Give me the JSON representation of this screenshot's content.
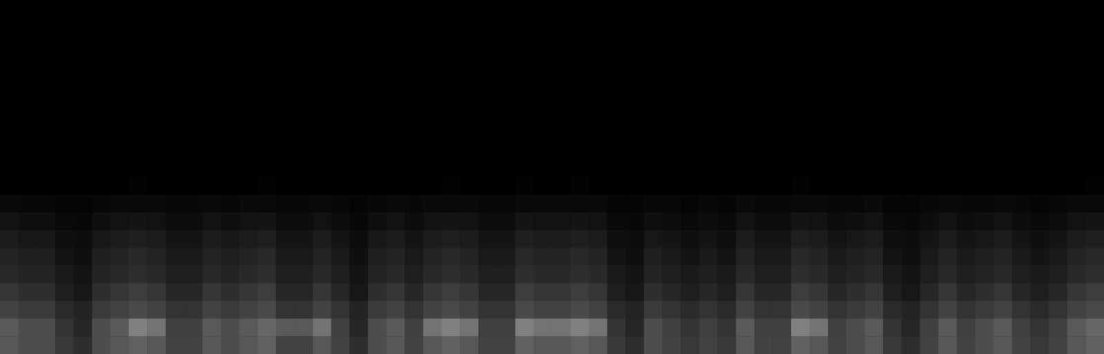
{
  "chart_data": {
    "type": "heatmap",
    "tick_labels": false,
    "zlim": [
      0,
      100
    ],
    "cells": [
      [
        0,
        0,
        0,
        0,
        0,
        0,
        0,
        0,
        0,
        0,
        0,
        0,
        0,
        0,
        0,
        0,
        0,
        0,
        0,
        0,
        0,
        0,
        0,
        0,
        0,
        0,
        0,
        0,
        0,
        0,
        0,
        0,
        0,
        0,
        0,
        0,
        0,
        0,
        0,
        0,
        0,
        0,
        0,
        0,
        0,
        0,
        0,
        0,
        0,
        0,
        0,
        0,
        0,
        0,
        0,
        0,
        0,
        0,
        0,
        0
      ],
      [
        0,
        0,
        0,
        0,
        0,
        0,
        0,
        0,
        0,
        0,
        0,
        0,
        0,
        0,
        0,
        0,
        0,
        0,
        0,
        0,
        0,
        0,
        0,
        0,
        0,
        0,
        0,
        0,
        0,
        0,
        0,
        0,
        0,
        0,
        0,
        0,
        0,
        0,
        0,
        0,
        0,
        0,
        0,
        0,
        0,
        0,
        0,
        0,
        0,
        0,
        0,
        0,
        0,
        0,
        0,
        0,
        0,
        0,
        0,
        0
      ],
      [
        0,
        0,
        0,
        0,
        0,
        0,
        0,
        0,
        0,
        0,
        0,
        0,
        0,
        0,
        0,
        0,
        0,
        0,
        0,
        0,
        0,
        0,
        0,
        0,
        0,
        0,
        0,
        0,
        0,
        0,
        0,
        0,
        0,
        0,
        0,
        0,
        0,
        0,
        0,
        0,
        0,
        0,
        0,
        0,
        0,
        0,
        0,
        0,
        0,
        0,
        0,
        0,
        0,
        0,
        0,
        0,
        0,
        0,
        0,
        0
      ],
      [
        0,
        0,
        0,
        0,
        0,
        0,
        0,
        0,
        0,
        0,
        0,
        0,
        0,
        0,
        0,
        0,
        0,
        0,
        0,
        0,
        0,
        0,
        0,
        0,
        0,
        0,
        0,
        0,
        0,
        0,
        0,
        0,
        0,
        0,
        0,
        0,
        0,
        0,
        0,
        0,
        0,
        0,
        0,
        0,
        0,
        0,
        0,
        0,
        0,
        0,
        0,
        0,
        0,
        0,
        0,
        0,
        0,
        0,
        0,
        0
      ],
      [
        0,
        0,
        0,
        0,
        0,
        0,
        0,
        0,
        0,
        0,
        0,
        0,
        0,
        0,
        0,
        0,
        0,
        0,
        0,
        0,
        0,
        0,
        0,
        0,
        0,
        0,
        0,
        0,
        0,
        0,
        0,
        0,
        0,
        0,
        0,
        0,
        0,
        0,
        0,
        0,
        0,
        0,
        0,
        0,
        0,
        0,
        0,
        0,
        0,
        0,
        0,
        0,
        0,
        0,
        0,
        0,
        0,
        0,
        0,
        0
      ],
      [
        0,
        0,
        0,
        0,
        0,
        0,
        0,
        0,
        0,
        0,
        0,
        0,
        0,
        0,
        0,
        0,
        0,
        0,
        0,
        0,
        0,
        0,
        0,
        0,
        0,
        0,
        0,
        0,
        0,
        0,
        0,
        0,
        0,
        0,
        0,
        0,
        0,
        0,
        0,
        0,
        0,
        0,
        0,
        0,
        0,
        0,
        0,
        0,
        0,
        0,
        0,
        0,
        0,
        0,
        0,
        0,
        0,
        0,
        0,
        0
      ],
      [
        0,
        0,
        0,
        0,
        0,
        0,
        0,
        0,
        0,
        0,
        0,
        0,
        0,
        0,
        0,
        0,
        0,
        0,
        0,
        0,
        0,
        0,
        0,
        0,
        0,
        0,
        0,
        0,
        0,
        0,
        0,
        0,
        0,
        0,
        0,
        0,
        0,
        0,
        0,
        0,
        0,
        0,
        0,
        0,
        0,
        0,
        0,
        0,
        0,
        0,
        0,
        0,
        0,
        0,
        0,
        0,
        0,
        0,
        0,
        0
      ],
      [
        0,
        0,
        0,
        0,
        0,
        0,
        0,
        0,
        0,
        0,
        0,
        0,
        0,
        0,
        0,
        0,
        0,
        0,
        0,
        0,
        0,
        0,
        0,
        0,
        0,
        0,
        0,
        0,
        0,
        0,
        0,
        0,
        0,
        0,
        0,
        0,
        0,
        0,
        0,
        0,
        0,
        0,
        0,
        0,
        0,
        0,
        0,
        0,
        0,
        0,
        0,
        0,
        0,
        0,
        0,
        0,
        0,
        0,
        0,
        0
      ],
      [
        0,
        0,
        0,
        0,
        0,
        0,
        0,
        0,
        0,
        0,
        0,
        0,
        0,
        0,
        0,
        0,
        0,
        0,
        0,
        0,
        0,
        0,
        0,
        0,
        0,
        0,
        0,
        0,
        0,
        0,
        0,
        0,
        0,
        0,
        0,
        0,
        0,
        0,
        0,
        0,
        0,
        0,
        0,
        0,
        0,
        0,
        0,
        0,
        0,
        0,
        0,
        0,
        0,
        0,
        0,
        0,
        0,
        0,
        0,
        0
      ],
      [
        0,
        0,
        0,
        0,
        0,
        0,
        0,
        0,
        0,
        0,
        0,
        0,
        0,
        0,
        0,
        0,
        0,
        0,
        0,
        0,
        0,
        0,
        0,
        0,
        0,
        0,
        0,
        0,
        0,
        0,
        0,
        0,
        0,
        0,
        0,
        0,
        0,
        0,
        0,
        0,
        0,
        0,
        0,
        0,
        0,
        0,
        0,
        0,
        0,
        0,
        0,
        0,
        0,
        0,
        0,
        0,
        0,
        0,
        0,
        0
      ],
      [
        0,
        0,
        0,
        0,
        0,
        0,
        0,
        1,
        0,
        0,
        0,
        0,
        0,
        0,
        1,
        0,
        0,
        0,
        0,
        0,
        0,
        0,
        0,
        0,
        1,
        0,
        0,
        0,
        1,
        0,
        0,
        1,
        0,
        0,
        0,
        0,
        0,
        0,
        0,
        0,
        0,
        0,
        0,
        1,
        0,
        0,
        0,
        0,
        0,
        0,
        0,
        0,
        0,
        0,
        0,
        0,
        0,
        0,
        0,
        1
      ],
      [
        4,
        3,
        3,
        2,
        2,
        3,
        4,
        4,
        4,
        3,
        3,
        4,
        3,
        4,
        4,
        3,
        3,
        4,
        3,
        2,
        3,
        4,
        3,
        4,
        4,
        4,
        3,
        3,
        4,
        4,
        4,
        4,
        4,
        2,
        2,
        3,
        3,
        2,
        3,
        2,
        4,
        3,
        3,
        4,
        4,
        3,
        3,
        4,
        2,
        2,
        3,
        4,
        3,
        3,
        4,
        3,
        2,
        3,
        4,
        4
      ],
      [
        7,
        6,
        6,
        4,
        3,
        6,
        7,
        8,
        7,
        5,
        5,
        7,
        6,
        7,
        8,
        5,
        5,
        7,
        5,
        3,
        6,
        7,
        5,
        7,
        8,
        7,
        5,
        5,
        8,
        7,
        7,
        8,
        7,
        4,
        3,
        6,
        5,
        4,
        5,
        4,
        7,
        5,
        5,
        8,
        7,
        5,
        6,
        7,
        4,
        3,
        5,
        7,
        5,
        6,
        7,
        5,
        4,
        5,
        7,
        8
      ],
      [
        11,
        9,
        9,
        6,
        5,
        9,
        11,
        12,
        11,
        8,
        8,
        11,
        9,
        11,
        12,
        8,
        8,
        11,
        8,
        5,
        9,
        11,
        8,
        11,
        12,
        11,
        8,
        8,
        12,
        11,
        11,
        12,
        11,
        6,
        5,
        9,
        8,
        6,
        8,
        6,
        11,
        8,
        8,
        12,
        11,
        8,
        9,
        11,
        6,
        5,
        8,
        11,
        8,
        9,
        11,
        8,
        6,
        8,
        11,
        12
      ],
      [
        14,
        12,
        12,
        8,
        6,
        12,
        14,
        16,
        14,
        10,
        10,
        14,
        12,
        14,
        16,
        10,
        10,
        14,
        10,
        6,
        12,
        14,
        10,
        14,
        16,
        14,
        10,
        10,
        16,
        14,
        14,
        16,
        14,
        8,
        6,
        12,
        10,
        8,
        10,
        8,
        14,
        10,
        10,
        16,
        14,
        10,
        12,
        14,
        8,
        6,
        10,
        14,
        10,
        12,
        14,
        10,
        8,
        10,
        14,
        16
      ],
      [
        16,
        14,
        14,
        10,
        8,
        14,
        16,
        18,
        16,
        12,
        12,
        16,
        14,
        16,
        18,
        12,
        12,
        16,
        12,
        8,
        14,
        16,
        12,
        16,
        18,
        16,
        12,
        12,
        18,
        16,
        16,
        18,
        16,
        10,
        8,
        14,
        12,
        10,
        12,
        10,
        16,
        12,
        12,
        18,
        16,
        12,
        14,
        16,
        10,
        8,
        12,
        16,
        12,
        14,
        16,
        12,
        10,
        12,
        16,
        18
      ],
      [
        21,
        18,
        18,
        12,
        9,
        18,
        21,
        24,
        21,
        15,
        15,
        21,
        18,
        21,
        24,
        15,
        15,
        21,
        15,
        9,
        18,
        21,
        15,
        21,
        24,
        21,
        15,
        15,
        24,
        21,
        21,
        24,
        21,
        12,
        9,
        18,
        15,
        12,
        15,
        12,
        21,
        15,
        15,
        24,
        21,
        15,
        18,
        21,
        12,
        9,
        15,
        21,
        15,
        18,
        21,
        15,
        12,
        15,
        21,
        24
      ],
      [
        26,
        23,
        23,
        17,
        14,
        23,
        26,
        29,
        26,
        20,
        20,
        26,
        23,
        26,
        29,
        20,
        20,
        26,
        20,
        14,
        23,
        26,
        20,
        26,
        29,
        26,
        20,
        20,
        29,
        26,
        26,
        29,
        26,
        17,
        14,
        23,
        20,
        17,
        20,
        17,
        26,
        20,
        20,
        29,
        26,
        20,
        23,
        26,
        17,
        14,
        20,
        26,
        20,
        23,
        26,
        20,
        17,
        20,
        26,
        29
      ],
      [
        35,
        30,
        30,
        20,
        15,
        30,
        35,
        50,
        45,
        25,
        25,
        35,
        30,
        35,
        40,
        35,
        35,
        45,
        25,
        15,
        30,
        35,
        25,
        45,
        50,
        45,
        25,
        25,
        50,
        45,
        45,
        50,
        45,
        20,
        15,
        30,
        25,
        20,
        25,
        20,
        35,
        25,
        25,
        50,
        45,
        25,
        30,
        35,
        20,
        15,
        25,
        35,
        25,
        30,
        35,
        25,
        20,
        25,
        35,
        40
      ],
      [
        34,
        30,
        30,
        22,
        18,
        30,
        34,
        38,
        34,
        26,
        26,
        34,
        30,
        34,
        38,
        26,
        26,
        34,
        26,
        18,
        30,
        34,
        26,
        34,
        38,
        34,
        26,
        26,
        38,
        34,
        34,
        38,
        34,
        22,
        18,
        30,
        26,
        22,
        26,
        22,
        34,
        26,
        26,
        38,
        34,
        26,
        30,
        34,
        22,
        18,
        26,
        34,
        26,
        30,
        34,
        26,
        22,
        26,
        34,
        38
      ]
    ]
  }
}
